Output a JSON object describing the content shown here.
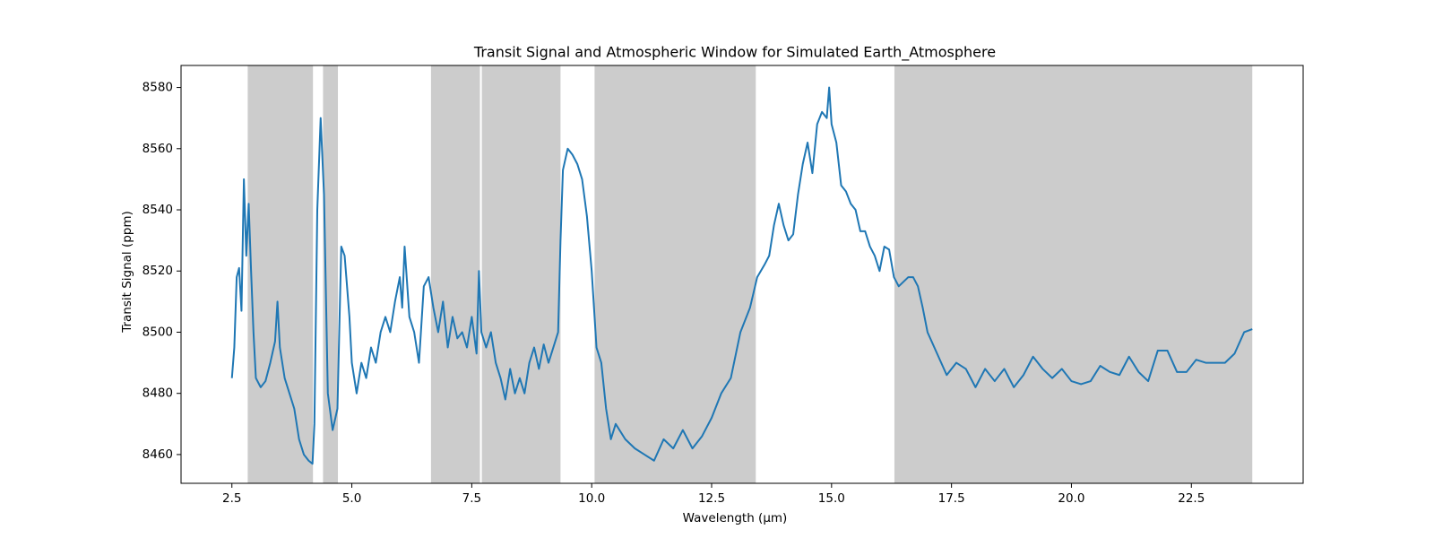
{
  "chart_data": {
    "type": "line",
    "title": "Transit Signal and Atmospheric Window for Simulated Earth_Atmosphere",
    "x_label": "Wavelength (μm)",
    "y_label": "Transit Signal (ppm)",
    "color": "#1f77b4",
    "span_color": "#cccccc",
    "spans": [
      [
        2.83,
        4.19
      ],
      [
        4.4,
        4.71
      ],
      [
        6.65,
        7.67
      ],
      [
        7.71,
        9.35
      ],
      [
        10.06,
        13.42
      ],
      [
        16.31,
        23.77
      ]
    ],
    "x": [
      2.5,
      2.55,
      2.6,
      2.65,
      2.7,
      2.75,
      2.8,
      2.85,
      2.9,
      2.95,
      3.0,
      3.1,
      3.2,
      3.3,
      3.4,
      3.45,
      3.5,
      3.6,
      3.7,
      3.8,
      3.9,
      4.0,
      4.1,
      4.18,
      4.22,
      4.28,
      4.35,
      4.42,
      4.5,
      4.6,
      4.7,
      4.78,
      4.85,
      4.95,
      5.0,
      5.1,
      5.2,
      5.3,
      5.4,
      5.5,
      5.6,
      5.7,
      5.8,
      5.9,
      6.0,
      6.05,
      6.1,
      6.2,
      6.3,
      6.4,
      6.5,
      6.6,
      6.7,
      6.8,
      6.9,
      7.0,
      7.1,
      7.2,
      7.3,
      7.4,
      7.5,
      7.6,
      7.65,
      7.7,
      7.8,
      7.9,
      8.0,
      8.1,
      8.2,
      8.3,
      8.4,
      8.5,
      8.6,
      8.7,
      8.8,
      8.9,
      9.0,
      9.1,
      9.2,
      9.3,
      9.35,
      9.4,
      9.5,
      9.6,
      9.7,
      9.8,
      9.9,
      10.0,
      10.1,
      10.2,
      10.3,
      10.4,
      10.5,
      10.7,
      10.9,
      11.1,
      11.3,
      11.5,
      11.7,
      11.9,
      12.1,
      12.3,
      12.5,
      12.7,
      12.9,
      13.1,
      13.3,
      13.45,
      13.6,
      13.7,
      13.8,
      13.9,
      14.0,
      14.1,
      14.2,
      14.3,
      14.4,
      14.5,
      14.6,
      14.7,
      14.8,
      14.9,
      14.95,
      15.0,
      15.1,
      15.2,
      15.3,
      15.4,
      15.5,
      15.6,
      15.7,
      15.8,
      15.9,
      16.0,
      16.1,
      16.2,
      16.3,
      16.4,
      16.6,
      16.7,
      16.8,
      16.9,
      17.0,
      17.2,
      17.4,
      17.6,
      17.8,
      18.0,
      18.2,
      18.4,
      18.6,
      18.8,
      19.0,
      19.2,
      19.4,
      19.6,
      19.8,
      20.0,
      20.2,
      20.4,
      20.6,
      20.8,
      21.0,
      21.2,
      21.4,
      21.6,
      21.8,
      22.0,
      22.2,
      22.4,
      22.6,
      22.8,
      23.0,
      23.2,
      23.4,
      23.6,
      23.77
    ],
    "values": [
      8485,
      8495,
      8518,
      8521,
      8507,
      8550,
      8525,
      8542,
      8520,
      8500,
      8485,
      8482,
      8484,
      8490,
      8497,
      8510,
      8495,
      8485,
      8480,
      8475,
      8465,
      8460,
      8458,
      8457,
      8470,
      8540,
      8570,
      8545,
      8480,
      8468,
      8475,
      8528,
      8525,
      8505,
      8490,
      8480,
      8490,
      8485,
      8495,
      8490,
      8500,
      8505,
      8500,
      8510,
      8518,
      8508,
      8528,
      8505,
      8500,
      8490,
      8515,
      8518,
      8508,
      8500,
      8510,
      8495,
      8505,
      8498,
      8500,
      8495,
      8505,
      8493,
      8520,
      8500,
      8495,
      8500,
      8490,
      8485,
      8478,
      8488,
      8480,
      8485,
      8480,
      8490,
      8495,
      8488,
      8496,
      8490,
      8495,
      8500,
      8530,
      8553,
      8560,
      8558,
      8555,
      8550,
      8538,
      8520,
      8495,
      8490,
      8475,
      8465,
      8470,
      8465,
      8462,
      8460,
      8458,
      8465,
      8462,
      8468,
      8462,
      8466,
      8472,
      8480,
      8485,
      8500,
      8508,
      8518,
      8522,
      8525,
      8535,
      8542,
      8535,
      8530,
      8532,
      8545,
      8555,
      8562,
      8552,
      8568,
      8572,
      8570,
      8580,
      8568,
      8562,
      8548,
      8546,
      8542,
      8540,
      8533,
      8533,
      8528,
      8525,
      8520,
      8528,
      8527,
      8518,
      8515,
      8518,
      8518,
      8515,
      8508,
      8500,
      8493,
      8486,
      8490,
      8488,
      8482,
      8488,
      8484,
      8488,
      8482,
      8486,
      8492,
      8488,
      8485,
      8488,
      8484,
      8483,
      8484,
      8489,
      8487,
      8486,
      8492,
      8487,
      8484,
      8494,
      8494,
      8487,
      8487,
      8491,
      8490,
      8490,
      8490,
      8493,
      8500,
      8501
    ],
    "xlim": [
      1.44,
      24.83
    ],
    "ylim": [
      8450.6,
      8587.2
    ],
    "xticks": [
      2.5,
      {
        "value": 5,
        "label": "5.0"
      },
      7.5,
      {
        "value": 10,
        "label": "10.0"
      },
      12.5,
      {
        "value": 15,
        "label": "15.0"
      },
      17.5,
      {
        "value": 20,
        "label": "20.0"
      },
      22.5
    ],
    "yticks": [
      8460,
      8480,
      8500,
      8520,
      8540,
      8560,
      8580
    ]
  }
}
